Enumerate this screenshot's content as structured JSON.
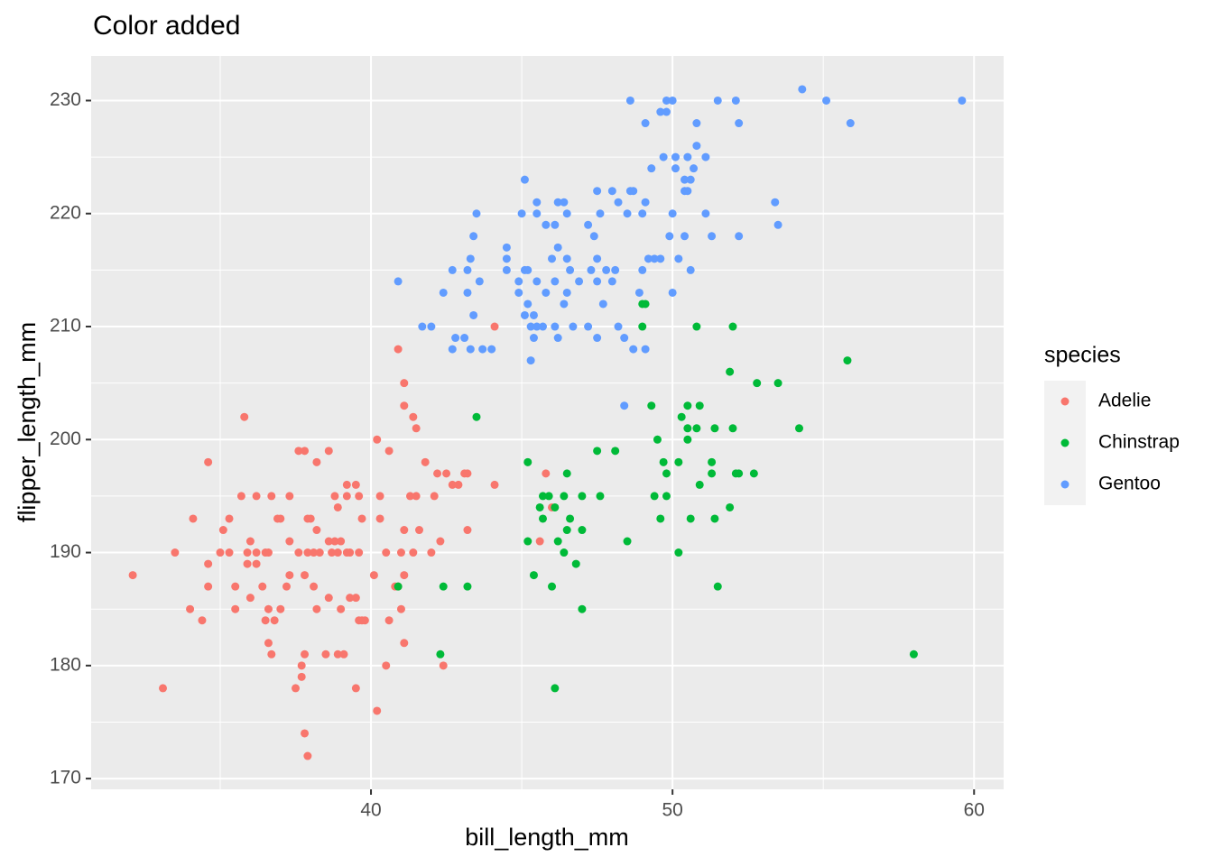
{
  "chart_data": {
    "type": "scatter",
    "title": "Color added",
    "x_label": "bill_length_mm",
    "y_label": "flipper_length_mm",
    "xlim": [
      30.72,
      60.98
    ],
    "ylim": [
      169.05,
      233.95
    ],
    "xticks": [
      40,
      50,
      60
    ],
    "yticks": [
      170,
      180,
      190,
      200,
      210,
      220,
      230
    ],
    "grid": true,
    "legend_title": "species",
    "legend_position": "right",
    "series": [
      {
        "name": "Adelie",
        "color": "#F8766D",
        "x": [
          32.1,
          33.1,
          33.5,
          34.0,
          34.4,
          34.1,
          34.6,
          34.6,
          34.6,
          35.0,
          35.1,
          35.3,
          35.3,
          35.5,
          35.5,
          35.7,
          35.9,
          35.9,
          35.8,
          36.0,
          36.2,
          36.0,
          36.2,
          36.2,
          36.4,
          36.5,
          36.6,
          36.7,
          36.6,
          36.6,
          36.7,
          36.9,
          36.8,
          37.0,
          37.0,
          37.2,
          37.3,
          37.5,
          37.3,
          37.6,
          37.8,
          37.7,
          37.7,
          37.8,
          37.8,
          37.9,
          37.8,
          37.6,
          37.9,
          38.0,
          38.1,
          38.1,
          38.2,
          38.2,
          38.2,
          38.3,
          38.5,
          38.6,
          38.6,
          38.7,
          38.8,
          38.8,
          38.9,
          39.0,
          39.0,
          38.9,
          39.1,
          39.2,
          39.2,
          39.3,
          39.5,
          39.5,
          39.5,
          39.6,
          39.7,
          39.6,
          39.6,
          39.7,
          39.8,
          40.1,
          40.2,
          40.2,
          40.3,
          40.5,
          40.6,
          40.5,
          40.6,
          40.8,
          40.9,
          40.9,
          41.0,
          41.0,
          41.1,
          41.1,
          41.1,
          41.1,
          41.1,
          41.3,
          41.4,
          41.5,
          41.5,
          41.6,
          41.8,
          42.0,
          42.1,
          42.2,
          42.3,
          42.4,
          42.5,
          42.7,
          42.9,
          43.1,
          43.2,
          43.2,
          44.1,
          44.1,
          45.6,
          45.8,
          46.0,
          38.9,
          39.2,
          37.9,
          36.5,
          37.3,
          40.3,
          41.4,
          38.6,
          39.3
        ],
        "values": [
          188,
          178,
          190,
          185,
          184,
          193,
          187,
          189,
          198,
          190,
          192,
          193,
          190,
          187,
          185,
          195,
          190,
          189,
          202,
          186,
          189,
          191,
          195,
          190,
          187,
          184,
          185,
          195,
          190,
          182,
          181,
          193,
          184,
          193,
          185,
          187,
          188,
          178,
          191,
          199,
          199,
          180,
          179,
          181,
          174,
          172,
          188,
          190,
          193,
          193,
          187,
          190,
          185,
          198,
          192,
          190,
          181,
          199,
          186,
          190,
          191,
          195,
          190,
          185,
          191,
          181,
          181,
          190,
          196,
          186,
          186,
          178,
          196,
          184,
          193,
          190,
          195,
          184,
          184,
          188,
          176,
          200,
          195,
          190,
          184,
          180,
          199,
          187,
          187,
          208,
          185,
          190,
          182,
          192,
          188,
          203,
          205,
          195,
          202,
          201,
          195,
          192,
          198,
          190,
          195,
          197,
          191,
          180,
          197,
          196,
          196,
          197,
          192,
          197,
          196,
          210,
          191,
          197,
          194,
          194,
          195,
          190,
          190,
          195,
          193,
          190,
          191,
          190
        ]
      },
      {
        "name": "Chinstrap",
        "color": "#00BA38",
        "x": [
          49.0,
          49.1,
          49.0,
          50.8,
          52.0,
          55.8,
          51.9,
          52.8,
          53.5,
          43.5,
          49.3,
          50.5,
          50.9,
          50.3,
          50.5,
          50.8,
          51.4,
          52.0,
          54.2,
          50.5,
          49.5,
          47.5,
          48.1,
          49.7,
          50.2,
          51.3,
          49.8,
          51.3,
          52.1,
          52.2,
          52.7,
          45.2,
          46.5,
          50.9,
          51.9,
          45.7,
          45.9,
          46.4,
          47.0,
          47.6,
          49.4,
          49.8,
          45.6,
          46.1,
          45.7,
          46.6,
          46.5,
          47.0,
          50.6,
          51.4,
          49.6,
          45.2,
          46.2,
          48.5,
          46.4,
          50.2,
          46.8,
          40.9,
          42.4,
          43.2,
          45.4,
          46.0,
          51.5,
          47.0,
          42.3,
          58.0,
          46.1
        ],
        "values": [
          212,
          212,
          210,
          210,
          210,
          207,
          206,
          205,
          205,
          202,
          203,
          203,
          203,
          202,
          201,
          201,
          201,
          201,
          201,
          200,
          200,
          199,
          199,
          198,
          198,
          198,
          197,
          197,
          197,
          197,
          197,
          198,
          197,
          196,
          194,
          195,
          195,
          195,
          195,
          195,
          195,
          195,
          194,
          194,
          193,
          193,
          192,
          192,
          193,
          193,
          193,
          191,
          191,
          191,
          190,
          190,
          189,
          187,
          187,
          187,
          188,
          187,
          187,
          185,
          181,
          181,
          178
        ]
      },
      {
        "name": "Gentoo",
        "color": "#619CFF",
        "x": [
          48.6,
          49.8,
          50.0,
          51.5,
          52.1,
          54.3,
          55.1,
          59.6,
          49.1,
          52.2,
          50.8,
          55.9,
          49.6,
          49.8,
          50.8,
          50.5,
          49.7,
          50.1,
          50.7,
          51.1,
          49.3,
          50.1,
          50.4,
          50.6,
          45.1,
          47.5,
          48.0,
          48.6,
          48.7,
          50.4,
          50.5,
          45.5,
          46.2,
          46.4,
          48.2,
          49.1,
          53.4,
          43.5,
          45.0,
          45.5,
          46.5,
          47.6,
          48.5,
          49.0,
          50.0,
          51.1,
          53.5,
          45.8,
          46.1,
          47.2,
          43.4,
          44.5,
          46.2,
          47.4,
          49.9,
          50.4,
          51.3,
          43.3,
          44.5,
          46.0,
          46.5,
          47.5,
          49.2,
          49.6,
          50.2,
          52.2,
          43.2,
          42.7,
          44.5,
          45.1,
          45.2,
          46.6,
          47.3,
          47.8,
          48.1,
          49.4,
          50.6,
          40.9,
          43.6,
          44.9,
          45.5,
          46.1,
          46.9,
          47.5,
          48.0,
          49.0,
          42.4,
          43.2,
          44.9,
          45.8,
          46.5,
          47.7,
          48.9,
          50.0,
          43.4,
          45.2,
          46.4,
          45.1,
          45.4,
          45.7,
          46.7,
          47.2,
          41.7,
          42.0,
          45.3,
          45.5,
          46.1,
          48.2,
          42.8,
          43.1,
          45.4,
          46.2,
          47.5,
          48.4,
          42.7,
          43.3,
          43.7,
          44.0,
          45.3,
          48.7,
          49.1,
          48.4
        ],
        "values": [
          230,
          230,
          230,
          230,
          230,
          231,
          230,
          230,
          228,
          228,
          228,
          228,
          229,
          229,
          226,
          225,
          225,
          225,
          224,
          225,
          224,
          224,
          223,
          223,
          223,
          222,
          222,
          222,
          222,
          222,
          222,
          221,
          221,
          221,
          221,
          221,
          221,
          220,
          220,
          220,
          220,
          220,
          220,
          220,
          220,
          220,
          219,
          219,
          219,
          219,
          218,
          217,
          217,
          218,
          218,
          218,
          218,
          216,
          216,
          216,
          216,
          216,
          216,
          216,
          216,
          218,
          215,
          215,
          215,
          215,
          215,
          215,
          215,
          215,
          215,
          216,
          215,
          214,
          214,
          214,
          214,
          214,
          214,
          214,
          214,
          215,
          213,
          213,
          213,
          213,
          213,
          212,
          213,
          213,
          211,
          212,
          212,
          211,
          211,
          210,
          210,
          210,
          210,
          210,
          210,
          210,
          210,
          210,
          209,
          209,
          209,
          209,
          209,
          209,
          208,
          208,
          208,
          208,
          207,
          208,
          208,
          203
        ]
      }
    ]
  }
}
